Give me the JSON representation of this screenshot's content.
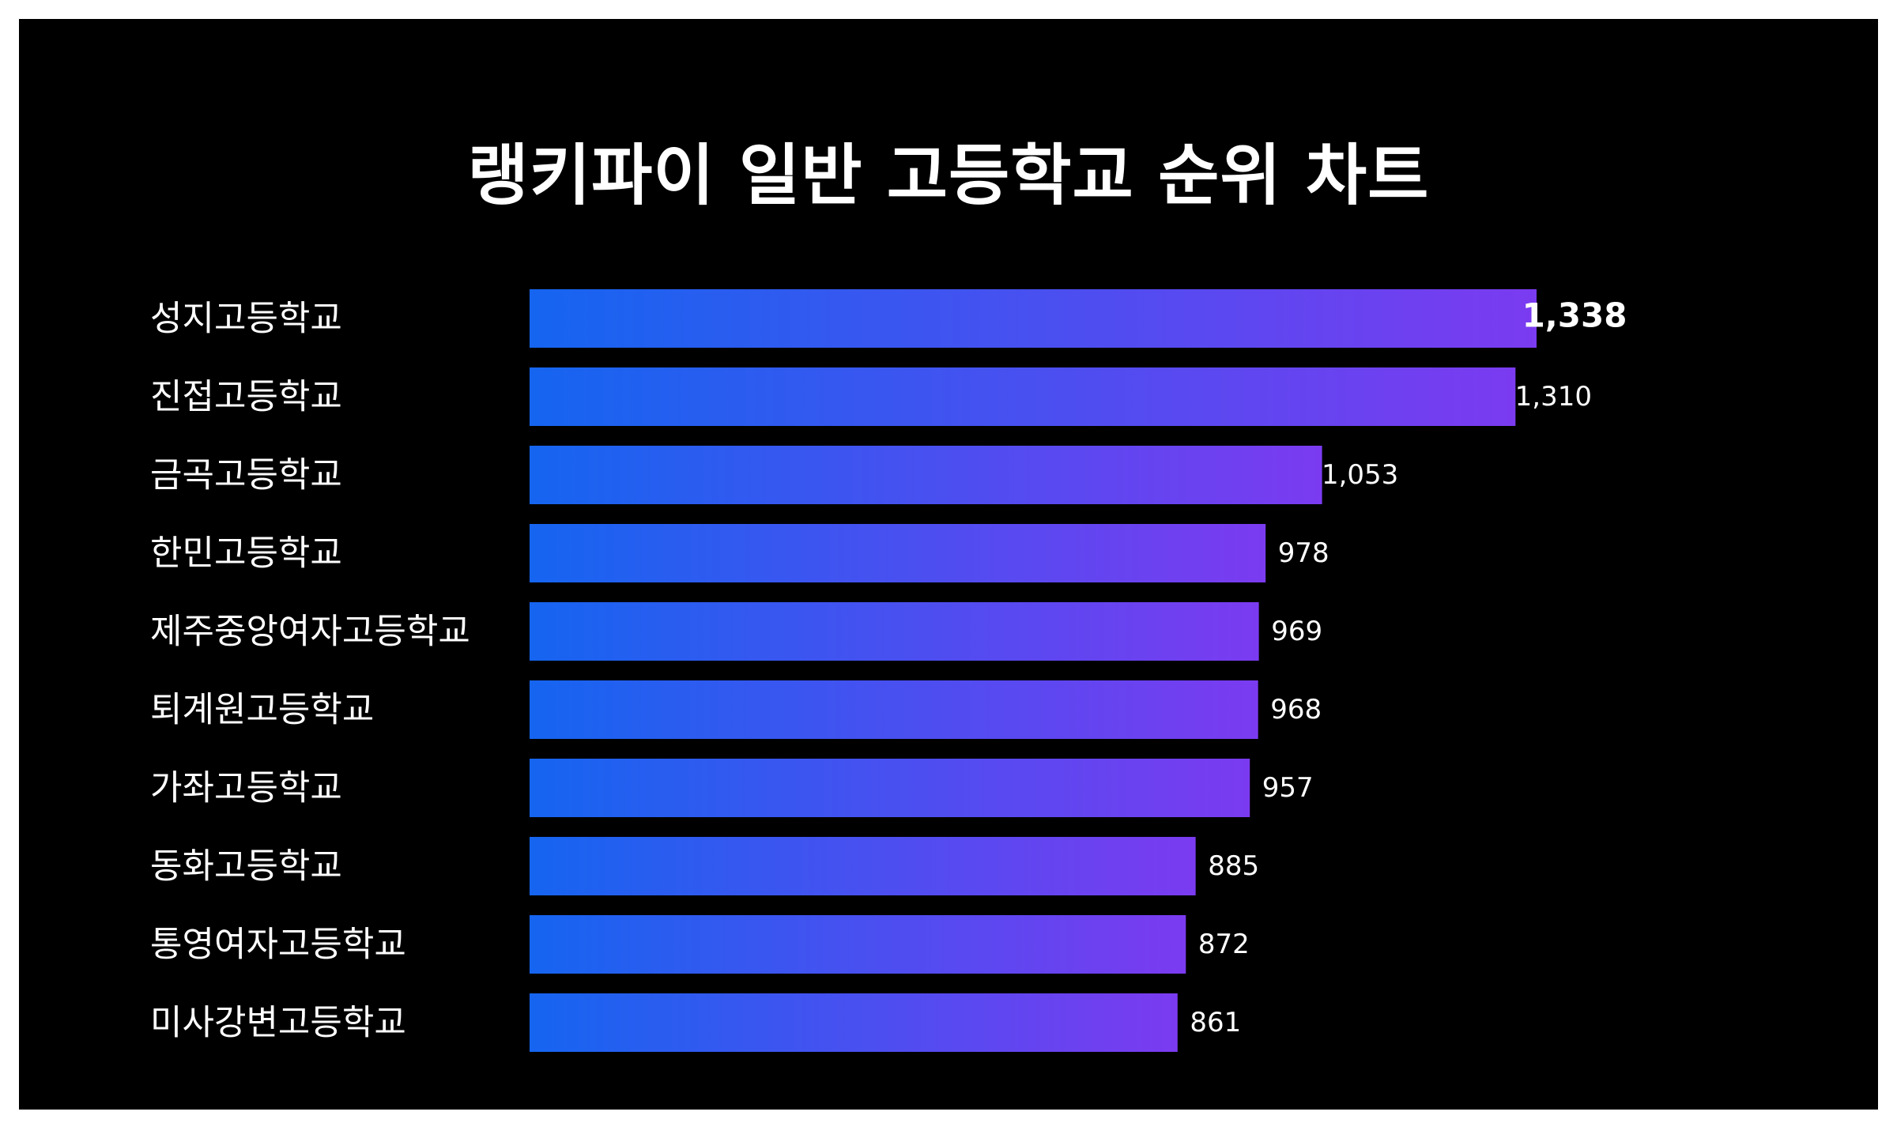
{
  "chart_data": {
    "type": "bar",
    "orientation": "horizontal",
    "title": "랭키파이 일반 고등학교 순위 차트",
    "categories": [
      "성지고등학교",
      "진접고등학교",
      "금곡고등학교",
      "한민고등학교",
      "제주중앙여자고등학교",
      "퇴계원고등학교",
      "가좌고등학교",
      "동화고등학교",
      "통영여자고등학교",
      "미사강변고등학교"
    ],
    "values": [
      1338,
      1310,
      1053,
      978,
      969,
      968,
      957,
      885,
      872,
      861
    ],
    "value_labels": [
      "1,338",
      "1,310",
      "1,053",
      "978",
      "969",
      "968",
      "957",
      "885",
      "872",
      "861"
    ],
    "xlim": [
      0,
      1338
    ],
    "grid": false,
    "legend": "none",
    "colors": {
      "background": "#000000",
      "bar_start": "#1565f0",
      "bar_end": "#7b3bf0",
      "text": "#ffffff"
    }
  }
}
